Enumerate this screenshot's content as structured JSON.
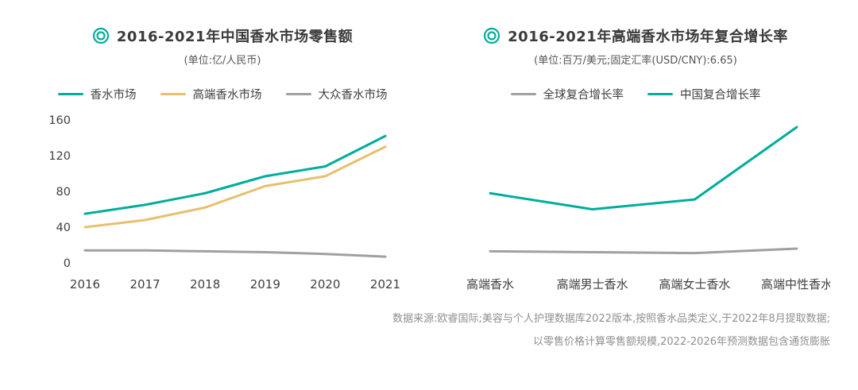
{
  "accent_color": "#00ad9c",
  "chart_data": [
    {
      "type": "line",
      "title": "2016-2021年中国香水市场零售额",
      "subtitle": "(单位:亿/人民币)",
      "xlabel": "",
      "ylabel": "",
      "categories": [
        "2016",
        "2017",
        "2018",
        "2019",
        "2020",
        "2021"
      ],
      "series": [
        {
          "name": "香水市场",
          "color": "#00ad9c",
          "values": [
            55,
            65,
            78,
            97,
            108,
            142
          ]
        },
        {
          "name": "高端香水市场",
          "color": "#e7c06d",
          "values": [
            40,
            48,
            62,
            86,
            97,
            130
          ]
        },
        {
          "name": "大众香水市场",
          "color": "#a0a0a0",
          "values": [
            14,
            14,
            13,
            12,
            10,
            7
          ]
        }
      ],
      "ylim": [
        0,
        160
      ],
      "yticks": [
        0,
        40,
        80,
        120,
        160
      ],
      "grid": false,
      "legend_position": "top"
    },
    {
      "type": "line",
      "title": "2016-2021年高端香水市场年复合增长率",
      "subtitle": "(单位:百万/美元;固定汇率(USD/CNY):6.65)",
      "xlabel": "",
      "ylabel": "",
      "categories": [
        "高端香水",
        "高端男士香水",
        "高端女士香水",
        "高端中性香水"
      ],
      "series": [
        {
          "name": "全球复合增长率",
          "color": "#a0a0a0",
          "values": [
            13,
            12,
            11,
            16
          ]
        },
        {
          "name": "中国复合增长率",
          "color": "#00ad9c",
          "values": [
            78,
            60,
            71,
            152
          ]
        }
      ],
      "ylim": [
        0,
        160
      ],
      "yticks": [],
      "grid": false,
      "legend_position": "top"
    }
  ],
  "footer": {
    "line1": "数据来源:欧睿国际;美容与个人护理数据库2022版本,按照香水品类定义,于2022年8月提取数据;",
    "line2": "以零售价格计算零售额规模,2022-2026年预测数据包含通货膨胀"
  }
}
